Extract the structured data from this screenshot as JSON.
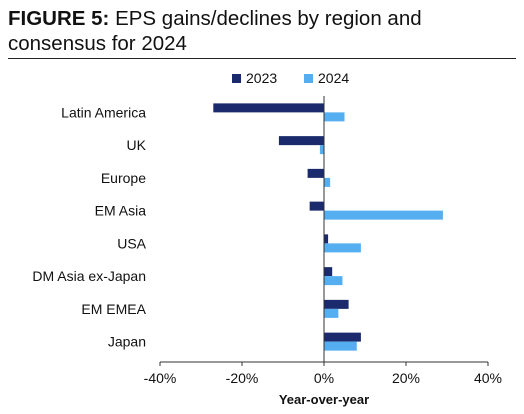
{
  "figure": {
    "label": "FIGURE 5:",
    "title": "EPS gains/declines by region and consensus for 2024"
  },
  "chart_data": {
    "type": "bar",
    "orientation": "horizontal",
    "categories": [
      "Latin America",
      "UK",
      "Europe",
      "EM Asia",
      "USA",
      "DM Asia ex-Japan",
      "EM EMEA",
      "Japan"
    ],
    "series": [
      {
        "name": "2023",
        "color": "#1a2a6c",
        "values": [
          -27,
          -11,
          -4,
          -3.5,
          1,
          2,
          6,
          9
        ]
      },
      {
        "name": "2024",
        "color": "#55aef0",
        "values": [
          5,
          -1,
          1.5,
          29,
          9,
          4.5,
          3.5,
          8
        ]
      }
    ],
    "xlim": [
      -40,
      40
    ],
    "xticks": [
      -40,
      -20,
      0,
      20,
      40
    ],
    "tick_labels": [
      "-40%",
      "-20%",
      "0%",
      "20%",
      "40%"
    ],
    "xlabel": "Year-over-year",
    "ylabel": "",
    "legend_position": "top",
    "grid": false
  }
}
